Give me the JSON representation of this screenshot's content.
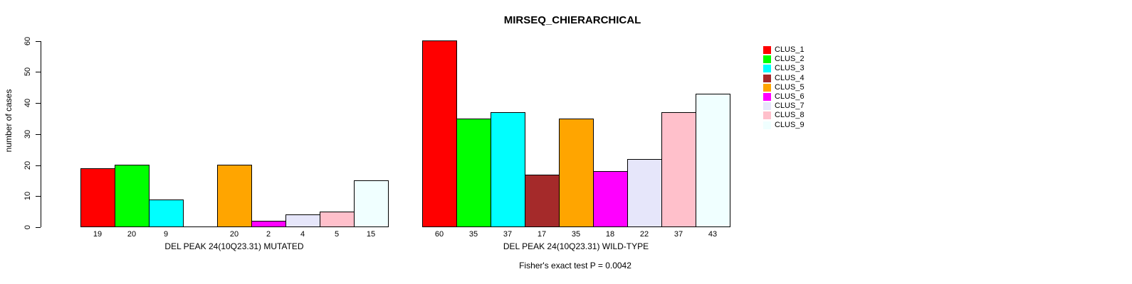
{
  "title": "MIRSEQ_CHIERARCHICAL",
  "footer": "Fisher's exact test P = 0.0042",
  "chart_data": {
    "type": "bar",
    "title": "MIRSEQ_CHIERARCHICAL",
    "ylabel": "number of cases",
    "xlabel": "",
    "ylim": [
      0,
      60
    ],
    "yticks": [
      0,
      10,
      20,
      30,
      40,
      50,
      60
    ],
    "grid": false,
    "legend_position": "right",
    "categories": [
      "CLUS_1",
      "CLUS_2",
      "CLUS_3",
      "CLUS_4",
      "CLUS_5",
      "CLUS_6",
      "CLUS_7",
      "CLUS_8",
      "CLUS_9"
    ],
    "colors": [
      "#FF0000",
      "#00FF00",
      "#00FFFF",
      "#A52A2A",
      "#FFA500",
      "#FF00FF",
      "#E6E6FA",
      "#FFC0CB",
      "#F0FFFF"
    ],
    "groups": [
      {
        "label": "DEL PEAK 24(10Q23.31) MUTATED",
        "values": [
          19,
          20,
          9,
          0,
          20,
          2,
          4,
          5,
          15
        ]
      },
      {
        "label": "DEL PEAK 24(10Q23.31) WILD-TYPE",
        "values": [
          60,
          35,
          37,
          17,
          35,
          18,
          22,
          37,
          43
        ]
      }
    ],
    "annotation": "Fisher's exact test P = 0.0042",
    "legend": [
      {
        "label": "CLUS_1",
        "color": "#FF0000"
      },
      {
        "label": "CLUS_2",
        "color": "#00FF00"
      },
      {
        "label": "CLUS_3",
        "color": "#00FFFF"
      },
      {
        "label": "CLUS_4",
        "color": "#A52A2A"
      },
      {
        "label": "CLUS_5",
        "color": "#FFA500"
      },
      {
        "label": "CLUS_6",
        "color": "#FF00FF"
      },
      {
        "label": "CLUS_7",
        "color": "#E6E6FA"
      },
      {
        "label": "CLUS_8",
        "color": "#FFC0CB"
      },
      {
        "label": "CLUS_9",
        "color": "#F0FFFF"
      }
    ]
  }
}
